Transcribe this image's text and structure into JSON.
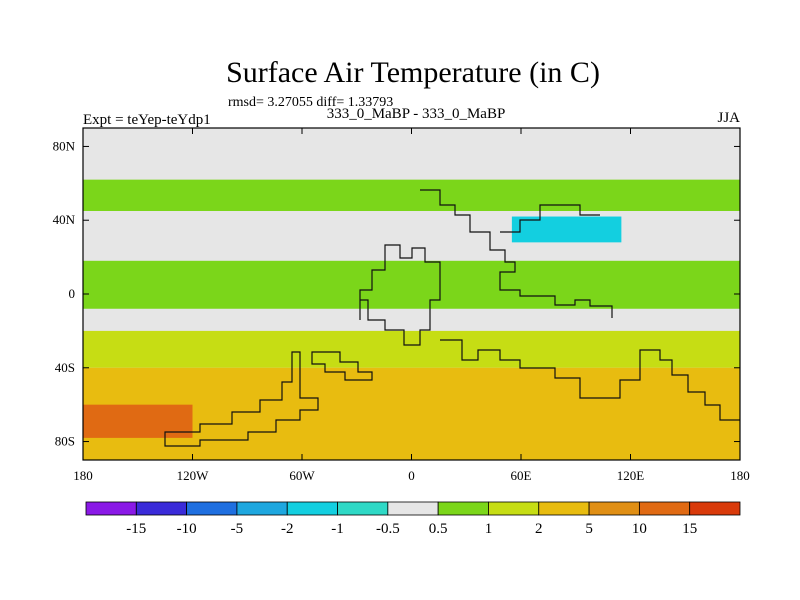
{
  "header": {
    "title": "Surface Air Temperature (in C)",
    "stats": "rmsd= 3.27055 diff= 1.33793",
    "left": "Expt = teYep-teYdp1",
    "center": "333_0_MaBP - 333_0_MaBP",
    "right": "JJA"
  },
  "chart_data": {
    "type": "heatmap",
    "title": "Surface Air Temperature (in C)",
    "xlabel": "",
    "ylabel": "",
    "xlim": [
      -180,
      180
    ],
    "ylim": [
      -90,
      90
    ],
    "x_ticks": [
      {
        "value": -180,
        "label": "180"
      },
      {
        "value": -120,
        "label": "120W"
      },
      {
        "value": -60,
        "label": "60W"
      },
      {
        "value": 0,
        "label": "0"
      },
      {
        "value": 60,
        "label": "60E"
      },
      {
        "value": 120,
        "label": "120E"
      },
      {
        "value": 180,
        "label": "180"
      }
    ],
    "y_ticks": [
      {
        "value": 80,
        "label": "80N"
      },
      {
        "value": 40,
        "label": "40N"
      },
      {
        "value": 0,
        "label": "0"
      },
      {
        "value": -40,
        "label": "40S"
      },
      {
        "value": -80,
        "label": "80S"
      }
    ],
    "colorbar": {
      "levels": [
        "-15",
        "-10",
        "-5",
        "-2",
        "-1",
        "-0.5",
        "0.5",
        "1",
        "2",
        "5",
        "10",
        "15"
      ],
      "colors": [
        "#8a19e6",
        "#3a2bd9",
        "#1f6fe0",
        "#1ea7df",
        "#13cfe0",
        "#2fd9c6",
        "#e6e6e6",
        "#7bd61a",
        "#c6dd14",
        "#e8bc10",
        "#e08f15",
        "#e06a13",
        "#d93a0a"
      ]
    },
    "regions": [
      {
        "name": "north-band",
        "lat": [
          45,
          62
        ],
        "lon": [
          -180,
          180
        ],
        "value": 0.8
      },
      {
        "name": "tropical-band",
        "lat": [
          -8,
          18
        ],
        "lon": [
          -180,
          180
        ],
        "value": 0.8
      },
      {
        "name": "southern-subtropics",
        "lat": [
          -40,
          -20
        ],
        "lon": [
          -180,
          180
        ],
        "value": 1.8
      },
      {
        "name": "southern-midlatitudes",
        "lat": [
          -90,
          -40
        ],
        "lon": [
          -180,
          180
        ],
        "value": 4
      },
      {
        "name": "southern-high-west",
        "lat": [
          -78,
          -60
        ],
        "lon": [
          -180,
          -120
        ],
        "value": 12
      },
      {
        "name": "asian-cool-patch",
        "lat": [
          28,
          42
        ],
        "lon": [
          55,
          115
        ],
        "value": -1.5
      }
    ]
  }
}
